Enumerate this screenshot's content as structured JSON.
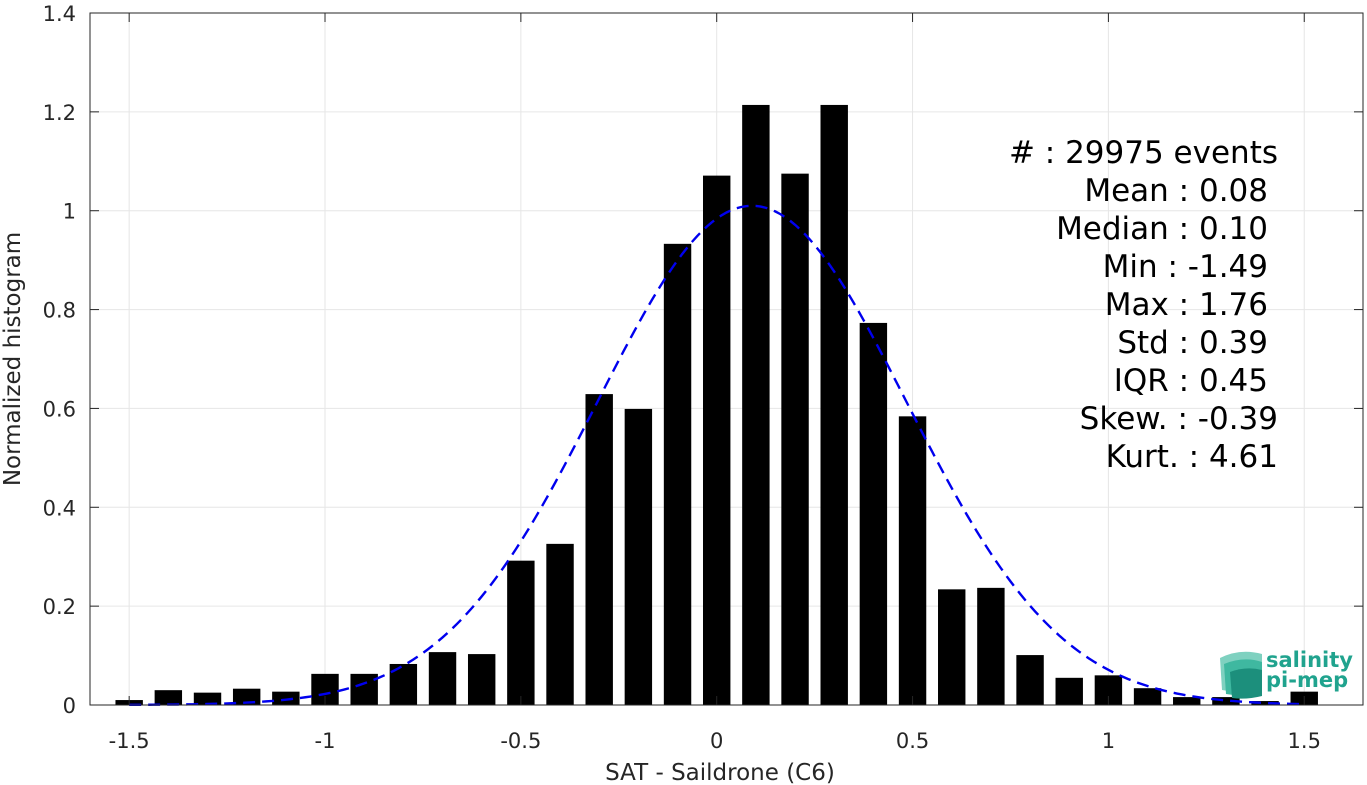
{
  "chart_data": {
    "type": "bar",
    "xlabel": "SAT - Saildrone (C6)",
    "ylabel": "Normalized histogram",
    "xlim": [
      -1.6,
      1.65
    ],
    "ylim": [
      0,
      1.4
    ],
    "xticks": [
      -1.5,
      -1,
      -0.5,
      0,
      0.5,
      1,
      1.5
    ],
    "xtick_labels": [
      "-1.5",
      "-1",
      "-0.5",
      "0",
      "0.5",
      "1",
      "1.5"
    ],
    "yticks": [
      0,
      0.2,
      0.4,
      0.6,
      0.8,
      1,
      1.2,
      1.4
    ],
    "ytick_labels": [
      "0",
      "0.2",
      "0.4",
      "0.6",
      "0.8",
      "1",
      "1.2",
      "1.4"
    ],
    "grid": true,
    "bar_width": 0.07,
    "bar_color": "#000000",
    "bars": [
      {
        "x": -1.5,
        "y": 0.01
      },
      {
        "x": -1.4,
        "y": 0.03
      },
      {
        "x": -1.3,
        "y": 0.025
      },
      {
        "x": -1.2,
        "y": 0.033
      },
      {
        "x": -1.1,
        "y": 0.027
      },
      {
        "x": -1.0,
        "y": 0.063
      },
      {
        "x": -0.9,
        "y": 0.063
      },
      {
        "x": -0.8,
        "y": 0.083
      },
      {
        "x": -0.7,
        "y": 0.107
      },
      {
        "x": -0.6,
        "y": 0.103
      },
      {
        "x": -0.5,
        "y": 0.292
      },
      {
        "x": -0.4,
        "y": 0.326
      },
      {
        "x": -0.3,
        "y": 0.629
      },
      {
        "x": -0.2,
        "y": 0.599
      },
      {
        "x": -0.1,
        "y": 0.933
      },
      {
        "x": 0.0,
        "y": 1.071
      },
      {
        "x": 0.1,
        "y": 1.214
      },
      {
        "x": 0.2,
        "y": 1.075
      },
      {
        "x": 0.3,
        "y": 1.214
      },
      {
        "x": 0.4,
        "y": 0.773
      },
      {
        "x": 0.5,
        "y": 0.584
      },
      {
        "x": 0.6,
        "y": 0.234
      },
      {
        "x": 0.7,
        "y": 0.237
      },
      {
        "x": 0.8,
        "y": 0.101
      },
      {
        "x": 0.9,
        "y": 0.055
      },
      {
        "x": 1.0,
        "y": 0.06
      },
      {
        "x": 1.1,
        "y": 0.034
      },
      {
        "x": 1.2,
        "y": 0.016
      },
      {
        "x": 1.3,
        "y": 0.016
      },
      {
        "x": 1.4,
        "y": 0.008
      },
      {
        "x": 1.5,
        "y": 0.027
      }
    ],
    "fit_curve": {
      "style": "dashed",
      "color": "#0000ee",
      "mean": 0.09,
      "std": 0.395,
      "x_range": [
        -1.5,
        1.5
      ]
    },
    "stats_lines": [
      {
        "label": "#  : 29975 events"
      },
      {
        "label": "Mean : 0.08"
      },
      {
        "label": "Median : 0.10"
      },
      {
        "label": "Min : -1.49"
      },
      {
        "label": "Max : 1.76"
      },
      {
        "label": "Std : 0.39"
      },
      {
        "label": "IQR : 0.45"
      },
      {
        "label": "Skew. : -0.39"
      },
      {
        "label": "Kurt. : 4.61"
      }
    ]
  },
  "logo": {
    "line1": "salinity",
    "line2": "pi-mep",
    "color": "#20a38e"
  }
}
